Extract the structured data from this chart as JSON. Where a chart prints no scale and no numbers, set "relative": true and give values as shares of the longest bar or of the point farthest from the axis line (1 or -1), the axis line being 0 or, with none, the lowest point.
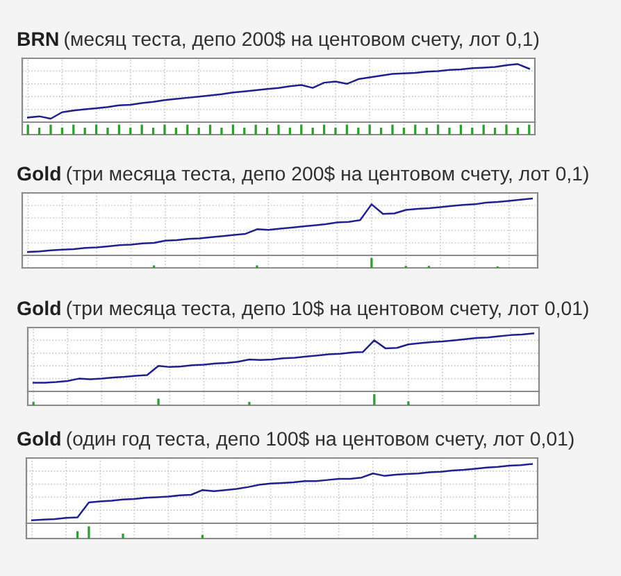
{
  "chart_data": [
    {
      "type": "line",
      "title": "BRN",
      "subtitle": "(месяц теста, депо 200$ на центовом счету, лот 0,1)",
      "relative": true,
      "grid": true,
      "categories": [
        null,
        null,
        null,
        null,
        null,
        null,
        null,
        null,
        null,
        null,
        null,
        null,
        null,
        null,
        null,
        null,
        null,
        null,
        null,
        null,
        null,
        null,
        null,
        null,
        null,
        null,
        null,
        null,
        null,
        null,
        null,
        null,
        null,
        null,
        null,
        null,
        null,
        null,
        null,
        null,
        null,
        null,
        null,
        null,
        null
      ],
      "series": [
        {
          "color": "#1f1f8f",
          "values": [
            0.08,
            0.1,
            0.06,
            0.17,
            0.2,
            0.22,
            0.24,
            0.26,
            0.29,
            0.3,
            0.33,
            0.35,
            0.38,
            0.4,
            0.42,
            0.44,
            0.46,
            0.48,
            0.51,
            0.53,
            0.55,
            0.57,
            0.59,
            0.62,
            0.64,
            0.59,
            0.68,
            0.7,
            0.66,
            0.74,
            0.77,
            0.8,
            0.83,
            0.84,
            0.85,
            0.87,
            0.88,
            0.9,
            0.91,
            0.93,
            0.94,
            0.95,
            0.98,
            1.0,
            0.92
          ]
        }
      ]
    },
    {
      "type": "bar",
      "relative": true,
      "grid": true,
      "categories": [
        null,
        null,
        null,
        null,
        null,
        null,
        null,
        null,
        null,
        null,
        null,
        null,
        null,
        null,
        null,
        null,
        null,
        null,
        null,
        null,
        null,
        null,
        null,
        null,
        null,
        null,
        null,
        null,
        null,
        null,
        null,
        null,
        null,
        null,
        null,
        null,
        null,
        null,
        null,
        null,
        null,
        null,
        null,
        null,
        null
      ],
      "series": [
        {
          "color": "#2e9e2e",
          "values": [
            1,
            0.7,
            1,
            0.7,
            1,
            0.7,
            1,
            0.7,
            1,
            0.7,
            1,
            0.7,
            1,
            0.7,
            1,
            0.7,
            1,
            0.7,
            1,
            0.7,
            1,
            0.7,
            1,
            0.7,
            1,
            0.7,
            1,
            0.7,
            1,
            0.7,
            1,
            0.7,
            1,
            0.7,
            1,
            0.7,
            1,
            0.7,
            1,
            0.7,
            1,
            0.7,
            1,
            0.7,
            1
          ]
        }
      ]
    },
    {
      "type": "line",
      "title": "Gold",
      "subtitle": "(три месяца теста, депо 200$ на центовом счету, лот 0,1)",
      "relative": true,
      "grid": true,
      "categories": [
        null,
        null,
        null,
        null,
        null,
        null,
        null,
        null,
        null,
        null,
        null,
        null,
        null,
        null,
        null,
        null,
        null,
        null,
        null,
        null,
        null,
        null,
        null,
        null,
        null,
        null,
        null,
        null,
        null,
        null,
        null,
        null,
        null,
        null,
        null,
        null,
        null,
        null,
        null,
        null,
        null,
        null,
        null,
        null,
        null
      ],
      "series": [
        {
          "color": "#1f1f8f",
          "values": [
            0.06,
            0.07,
            0.09,
            0.1,
            0.11,
            0.13,
            0.14,
            0.16,
            0.18,
            0.19,
            0.21,
            0.22,
            0.26,
            0.27,
            0.29,
            0.3,
            0.32,
            0.34,
            0.36,
            0.38,
            0.46,
            0.45,
            0.47,
            0.49,
            0.51,
            0.53,
            0.55,
            0.58,
            0.59,
            0.62,
            0.9,
            0.73,
            0.74,
            0.8,
            0.82,
            0.83,
            0.85,
            0.87,
            0.89,
            0.9,
            0.93,
            0.94,
            0.96,
            0.98,
            1.0
          ]
        }
      ]
    },
    {
      "type": "bar",
      "relative": true,
      "grid": true,
      "categories": [
        null,
        null,
        null,
        null,
        null,
        null,
        null,
        null,
        null,
        null,
        null,
        null,
        null,
        null,
        null,
        null,
        null,
        null,
        null,
        null,
        null,
        null,
        null,
        null,
        null,
        null,
        null,
        null,
        null,
        null,
        null,
        null,
        null,
        null,
        null,
        null,
        null,
        null,
        null,
        null,
        null,
        null,
        null,
        null,
        null
      ],
      "series": [
        {
          "color": "#2e9e2e",
          "values": [
            null,
            null,
            null,
            null,
            null,
            null,
            null,
            null,
            null,
            null,
            null,
            0.25,
            null,
            null,
            null,
            null,
            null,
            null,
            null,
            null,
            0.25,
            null,
            null,
            null,
            null,
            null,
            null,
            null,
            null,
            null,
            1,
            null,
            null,
            0.2,
            null,
            0.2,
            null,
            null,
            null,
            null,
            null,
            0.15,
            null,
            null,
            null
          ]
        }
      ]
    },
    {
      "type": "line",
      "title": "Gold",
      "subtitle": "(три месяца теста, депо 10$ на центовом счету, лот 0,01)",
      "relative": true,
      "grid": true,
      "categories": [
        null,
        null,
        null,
        null,
        null,
        null,
        null,
        null,
        null,
        null,
        null,
        null,
        null,
        null,
        null,
        null,
        null,
        null,
        null,
        null,
        null,
        null,
        null,
        null,
        null,
        null,
        null,
        null,
        null,
        null,
        null,
        null,
        null,
        null,
        null,
        null,
        null,
        null,
        null,
        null,
        null,
        null,
        null,
        null,
        null
      ],
      "series": [
        {
          "color": "#1f1f8f",
          "values": [
            0.15,
            0.15,
            0.16,
            0.18,
            0.22,
            0.21,
            0.22,
            0.24,
            0.25,
            0.27,
            0.28,
            0.44,
            0.42,
            0.43,
            0.45,
            0.46,
            0.48,
            0.49,
            0.51,
            0.55,
            0.54,
            0.55,
            0.57,
            0.58,
            0.6,
            0.62,
            0.64,
            0.65,
            0.67,
            0.68,
            0.88,
            0.74,
            0.75,
            0.81,
            0.83,
            0.85,
            0.86,
            0.88,
            0.9,
            0.92,
            0.93,
            0.95,
            0.97,
            0.98,
            1.0
          ]
        }
      ]
    },
    {
      "type": "bar",
      "relative": true,
      "grid": true,
      "categories": [
        null,
        null,
        null,
        null,
        null,
        null,
        null,
        null,
        null,
        null,
        null,
        null,
        null,
        null,
        null,
        null,
        null,
        null,
        null,
        null,
        null,
        null,
        null,
        null,
        null,
        null,
        null,
        null,
        null,
        null,
        null,
        null,
        null,
        null,
        null,
        null,
        null,
        null,
        null,
        null,
        null,
        null,
        null,
        null,
        null
      ],
      "series": [
        {
          "color": "#2e9e2e",
          "values": [
            0.3,
            null,
            null,
            null,
            null,
            null,
            null,
            null,
            null,
            null,
            null,
            0.6,
            null,
            null,
            null,
            null,
            null,
            null,
            null,
            0.3,
            null,
            null,
            null,
            null,
            null,
            null,
            null,
            null,
            null,
            null,
            1,
            null,
            null,
            0.35,
            null,
            null,
            null,
            null,
            null,
            null,
            null,
            null,
            null,
            null,
            null
          ]
        }
      ]
    },
    {
      "type": "line",
      "title": "Gold",
      "subtitle": "(один год теста, депо 100$ на центовом счету, лот 0,01)",
      "relative": true,
      "grid": true,
      "categories": [
        null,
        null,
        null,
        null,
        null,
        null,
        null,
        null,
        null,
        null,
        null,
        null,
        null,
        null,
        null,
        null,
        null,
        null,
        null,
        null,
        null,
        null,
        null,
        null,
        null,
        null,
        null,
        null,
        null,
        null,
        null,
        null,
        null,
        null,
        null,
        null,
        null,
        null,
        null,
        null,
        null,
        null,
        null,
        null,
        null
      ],
      "series": [
        {
          "color": "#1f1f8f",
          "values": [
            0.05,
            0.06,
            0.07,
            0.09,
            0.1,
            0.35,
            0.37,
            0.38,
            0.4,
            0.41,
            0.43,
            0.44,
            0.45,
            0.47,
            0.48,
            0.56,
            0.54,
            0.56,
            0.58,
            0.61,
            0.65,
            0.67,
            0.68,
            0.69,
            0.71,
            0.71,
            0.73,
            0.75,
            0.75,
            0.77,
            0.84,
            0.8,
            0.82,
            0.83,
            0.84,
            0.86,
            0.87,
            0.89,
            0.9,
            0.92,
            0.94,
            0.95,
            0.97,
            0.98,
            1.0
          ]
        }
      ]
    },
    {
      "type": "bar",
      "relative": true,
      "grid": true,
      "categories": [
        null,
        null,
        null,
        null,
        null,
        null,
        null,
        null,
        null,
        null,
        null,
        null,
        null,
        null,
        null,
        null,
        null,
        null,
        null,
        null,
        null,
        null,
        null,
        null,
        null,
        null,
        null,
        null,
        null,
        null,
        null,
        null,
        null,
        null,
        null,
        null,
        null,
        null,
        null,
        null,
        null,
        null,
        null,
        null,
        null
      ],
      "series": [
        {
          "color": "#2e9e2e",
          "values": [
            null,
            null,
            null,
            null,
            0.6,
            1,
            null,
            null,
            0.4,
            null,
            null,
            null,
            null,
            null,
            null,
            0.3,
            null,
            null,
            null,
            null,
            null,
            null,
            null,
            null,
            null,
            null,
            null,
            null,
            null,
            null,
            null,
            null,
            null,
            null,
            null,
            null,
            null,
            null,
            null,
            0.3,
            null,
            null,
            null,
            null,
            null
          ]
        }
      ]
    }
  ]
}
